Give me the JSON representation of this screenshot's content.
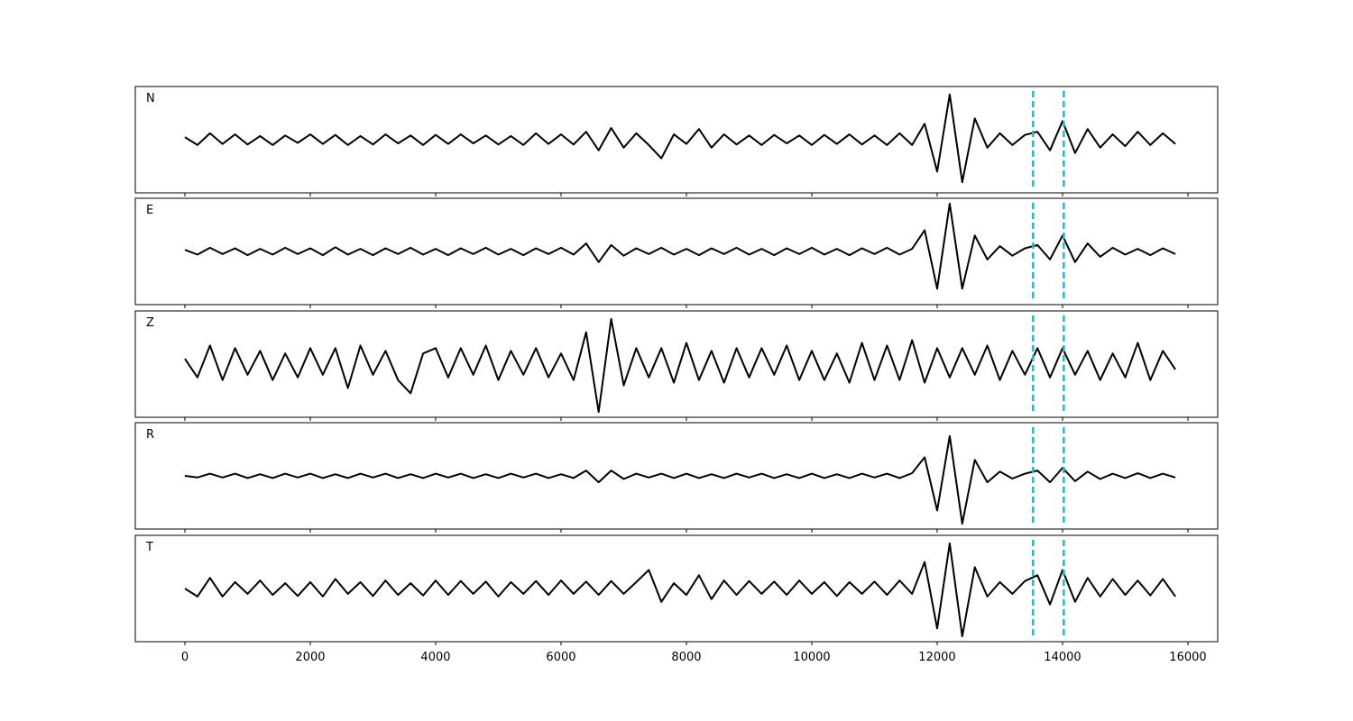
{
  "chart_data": {
    "type": "line",
    "x": [
      0,
      200,
      400,
      600,
      800,
      1000,
      1200,
      1400,
      1600,
      1800,
      2000,
      2200,
      2400,
      2600,
      2800,
      3000,
      3200,
      3400,
      3600,
      3800,
      4000,
      4200,
      4400,
      4600,
      4800,
      5000,
      5200,
      5400,
      5600,
      5800,
      6000,
      6200,
      6400,
      6600,
      6800,
      7000,
      7200,
      7400,
      7600,
      7800,
      8000,
      8200,
      8400,
      8600,
      8800,
      9000,
      9200,
      9400,
      9600,
      9800,
      10000,
      10200,
      10400,
      10600,
      10800,
      11000,
      11200,
      11400,
      11600,
      11800,
      12000,
      12200,
      12400,
      12600,
      12800,
      13000,
      13200,
      13400,
      13600,
      13800,
      14000,
      14200,
      14400,
      14600,
      14800,
      15000,
      15200,
      15400,
      15600,
      15800
    ],
    "xlim": [
      -791,
      16475
    ],
    "xticks": [
      0,
      2000,
      4000,
      6000,
      8000,
      10000,
      12000,
      14000,
      16000
    ],
    "ylim": [
      -1,
      1
    ],
    "vlines": [
      13530,
      14020
    ],
    "vline_color": "#17becf",
    "series": [
      {
        "name": "N",
        "color": "#000000",
        "values": [
          0.05,
          -0.1,
          0.12,
          -0.08,
          0.1,
          -0.09,
          0.07,
          -0.1,
          0.08,
          -0.06,
          0.1,
          -0.08,
          0.09,
          -0.1,
          0.07,
          -0.09,
          0.1,
          -0.07,
          0.08,
          -0.1,
          0.09,
          -0.08,
          0.1,
          -0.07,
          0.08,
          -0.09,
          0.07,
          -0.1,
          0.12,
          -0.08,
          0.1,
          -0.09,
          0.15,
          -0.2,
          0.22,
          -0.15,
          0.12,
          -0.1,
          -0.35,
          0.1,
          -0.08,
          0.2,
          -0.15,
          0.1,
          -0.09,
          0.08,
          -0.1,
          0.09,
          -0.07,
          0.08,
          -0.1,
          0.09,
          -0.08,
          0.1,
          -0.09,
          0.08,
          -0.1,
          0.12,
          -0.1,
          0.3,
          -0.6,
          0.85,
          -0.8,
          0.4,
          -0.15,
          0.12,
          -0.1,
          0.09,
          0.15,
          -0.2,
          0.35,
          -0.25,
          0.2,
          -0.15,
          0.1,
          -0.12,
          0.15,
          -0.1,
          0.12,
          -0.08
        ]
      },
      {
        "name": "E",
        "color": "#000000",
        "values": [
          0.03,
          -0.06,
          0.07,
          -0.05,
          0.06,
          -0.07,
          0.05,
          -0.06,
          0.07,
          -0.05,
          0.06,
          -0.07,
          0.08,
          -0.06,
          0.05,
          -0.07,
          0.06,
          -0.05,
          0.07,
          -0.06,
          0.05,
          -0.07,
          0.06,
          -0.05,
          0.07,
          -0.06,
          0.05,
          -0.07,
          0.06,
          -0.05,
          0.07,
          -0.06,
          0.15,
          -0.2,
          0.12,
          -0.08,
          0.06,
          -0.05,
          0.07,
          -0.06,
          0.05,
          -0.07,
          0.06,
          -0.05,
          0.07,
          -0.06,
          0.05,
          -0.07,
          0.06,
          -0.05,
          0.07,
          -0.06,
          0.05,
          -0.07,
          0.06,
          -0.05,
          0.07,
          -0.06,
          0.05,
          0.4,
          -0.7,
          0.9,
          -0.7,
          0.3,
          -0.15,
          0.1,
          -0.08,
          0.06,
          0.12,
          -0.15,
          0.3,
          -0.2,
          0.15,
          -0.1,
          0.07,
          -0.06,
          0.05,
          -0.07,
          0.06,
          -0.05
        ]
      },
      {
        "name": "Z",
        "color": "#000000",
        "values": [
          0.1,
          -0.25,
          0.35,
          -0.3,
          0.3,
          -0.2,
          0.25,
          -0.3,
          0.2,
          -0.25,
          0.3,
          -0.2,
          0.3,
          -0.45,
          0.35,
          -0.2,
          0.25,
          -0.3,
          -0.55,
          0.2,
          0.3,
          -0.25,
          0.3,
          -0.2,
          0.35,
          -0.3,
          0.25,
          -0.2,
          0.3,
          -0.25,
          0.2,
          -0.3,
          0.6,
          -0.9,
          0.85,
          -0.4,
          0.3,
          -0.25,
          0.3,
          -0.35,
          0.4,
          -0.3,
          0.25,
          -0.35,
          0.3,
          -0.25,
          0.3,
          -0.2,
          0.35,
          -0.3,
          0.25,
          -0.3,
          0.2,
          -0.35,
          0.4,
          -0.3,
          0.35,
          -0.3,
          0.45,
          -0.35,
          0.3,
          -0.25,
          0.3,
          -0.2,
          0.35,
          -0.3,
          0.25,
          -0.2,
          0.3,
          -0.25,
          0.3,
          -0.2,
          0.25,
          -0.3,
          0.2,
          -0.25,
          0.4,
          -0.3,
          0.25,
          -0.1
        ]
      },
      {
        "name": "R",
        "color": "#000000",
        "values": [
          0.0,
          -0.03,
          0.04,
          -0.03,
          0.04,
          -0.04,
          0.03,
          -0.04,
          0.04,
          -0.03,
          0.04,
          -0.04,
          0.03,
          -0.04,
          0.04,
          -0.03,
          0.04,
          -0.04,
          0.03,
          -0.04,
          0.04,
          -0.03,
          0.04,
          -0.04,
          0.03,
          -0.04,
          0.04,
          -0.03,
          0.04,
          -0.04,
          0.03,
          -0.04,
          0.1,
          -0.12,
          0.1,
          -0.06,
          0.04,
          -0.03,
          0.04,
          -0.04,
          0.04,
          -0.04,
          0.03,
          -0.04,
          0.04,
          -0.03,
          0.04,
          -0.04,
          0.03,
          -0.04,
          0.04,
          -0.04,
          0.03,
          -0.04,
          0.04,
          -0.03,
          0.04,
          -0.04,
          0.05,
          0.35,
          -0.65,
          0.75,
          -0.9,
          0.3,
          -0.12,
          0.08,
          -0.05,
          0.04,
          0.1,
          -0.12,
          0.15,
          -0.1,
          0.08,
          -0.06,
          0.04,
          -0.04,
          0.05,
          -0.04,
          0.04,
          -0.03
        ]
      },
      {
        "name": "T",
        "color": "#000000",
        "values": [
          0.0,
          -0.15,
          0.2,
          -0.15,
          0.12,
          -0.1,
          0.15,
          -0.12,
          0.1,
          -0.14,
          0.12,
          -0.15,
          0.18,
          -0.1,
          0.12,
          -0.14,
          0.15,
          -0.12,
          0.1,
          -0.13,
          0.15,
          -0.12,
          0.14,
          -0.1,
          0.13,
          -0.15,
          0.12,
          -0.1,
          0.14,
          -0.12,
          0.15,
          -0.1,
          0.13,
          -0.12,
          0.14,
          -0.1,
          0.12,
          0.35,
          -0.25,
          0.1,
          -0.12,
          0.25,
          -0.2,
          0.15,
          -0.12,
          0.14,
          -0.1,
          0.13,
          -0.12,
          0.15,
          -0.1,
          0.12,
          -0.14,
          0.12,
          -0.1,
          0.13,
          -0.12,
          0.15,
          -0.1,
          0.5,
          -0.75,
          0.85,
          -0.9,
          0.4,
          -0.15,
          0.12,
          -0.1,
          0.14,
          0.25,
          -0.3,
          0.35,
          -0.25,
          0.2,
          -0.15,
          0.18,
          -0.12,
          0.15,
          -0.13,
          0.18,
          -0.15
        ]
      }
    ]
  }
}
